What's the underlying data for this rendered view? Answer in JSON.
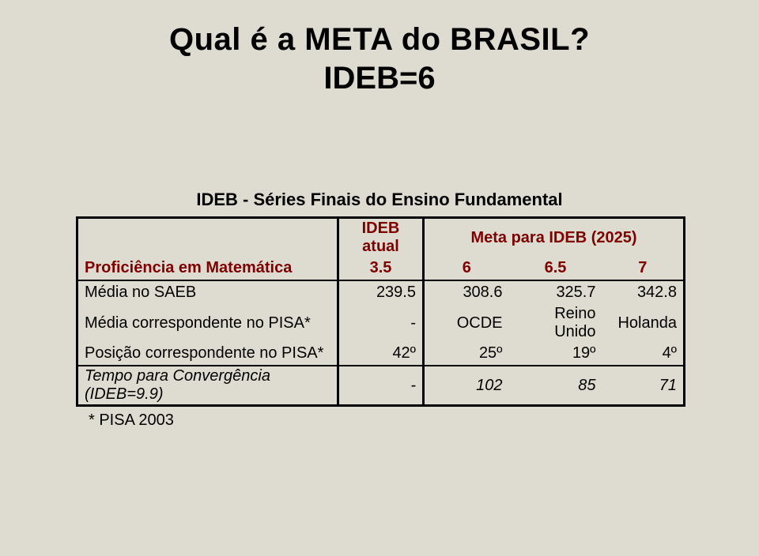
{
  "title": "Qual é a META do BRASIL?",
  "subtitle": "IDEB=6",
  "table": {
    "heading": "IDEB - Séries Finais do Ensino Fundamental",
    "header": {
      "ideb_atual": "IDEB atual",
      "meta": "Meta para IDEB (2025)"
    },
    "prof_label": "Proficiência em Matemática",
    "prof_values": [
      "3.5",
      "6",
      "6.5",
      "7"
    ],
    "rows": [
      {
        "label": "Média no SAEB",
        "v": [
          "239.5",
          "308.6",
          "325.7",
          "342.8"
        ]
      },
      {
        "label": "Média correspondente no PISA*",
        "v": [
          "-",
          "OCDE",
          "Reino Unido",
          "Holanda"
        ]
      },
      {
        "label": "Posição correspondente no PISA*",
        "v": [
          "42º",
          "25º",
          "19º",
          "4º"
        ]
      }
    ],
    "conv": {
      "label": "Tempo para Convergência (IDEB=9.9)",
      "v": [
        "-",
        "102",
        "85",
        "71"
      ]
    },
    "footnote": "* PISA 2003"
  },
  "style": {
    "background": "#DEDCD0",
    "header_color": "#7e0000",
    "border_color": "#000000",
    "title_fontsize": 40,
    "cell_fontsize": 20
  }
}
